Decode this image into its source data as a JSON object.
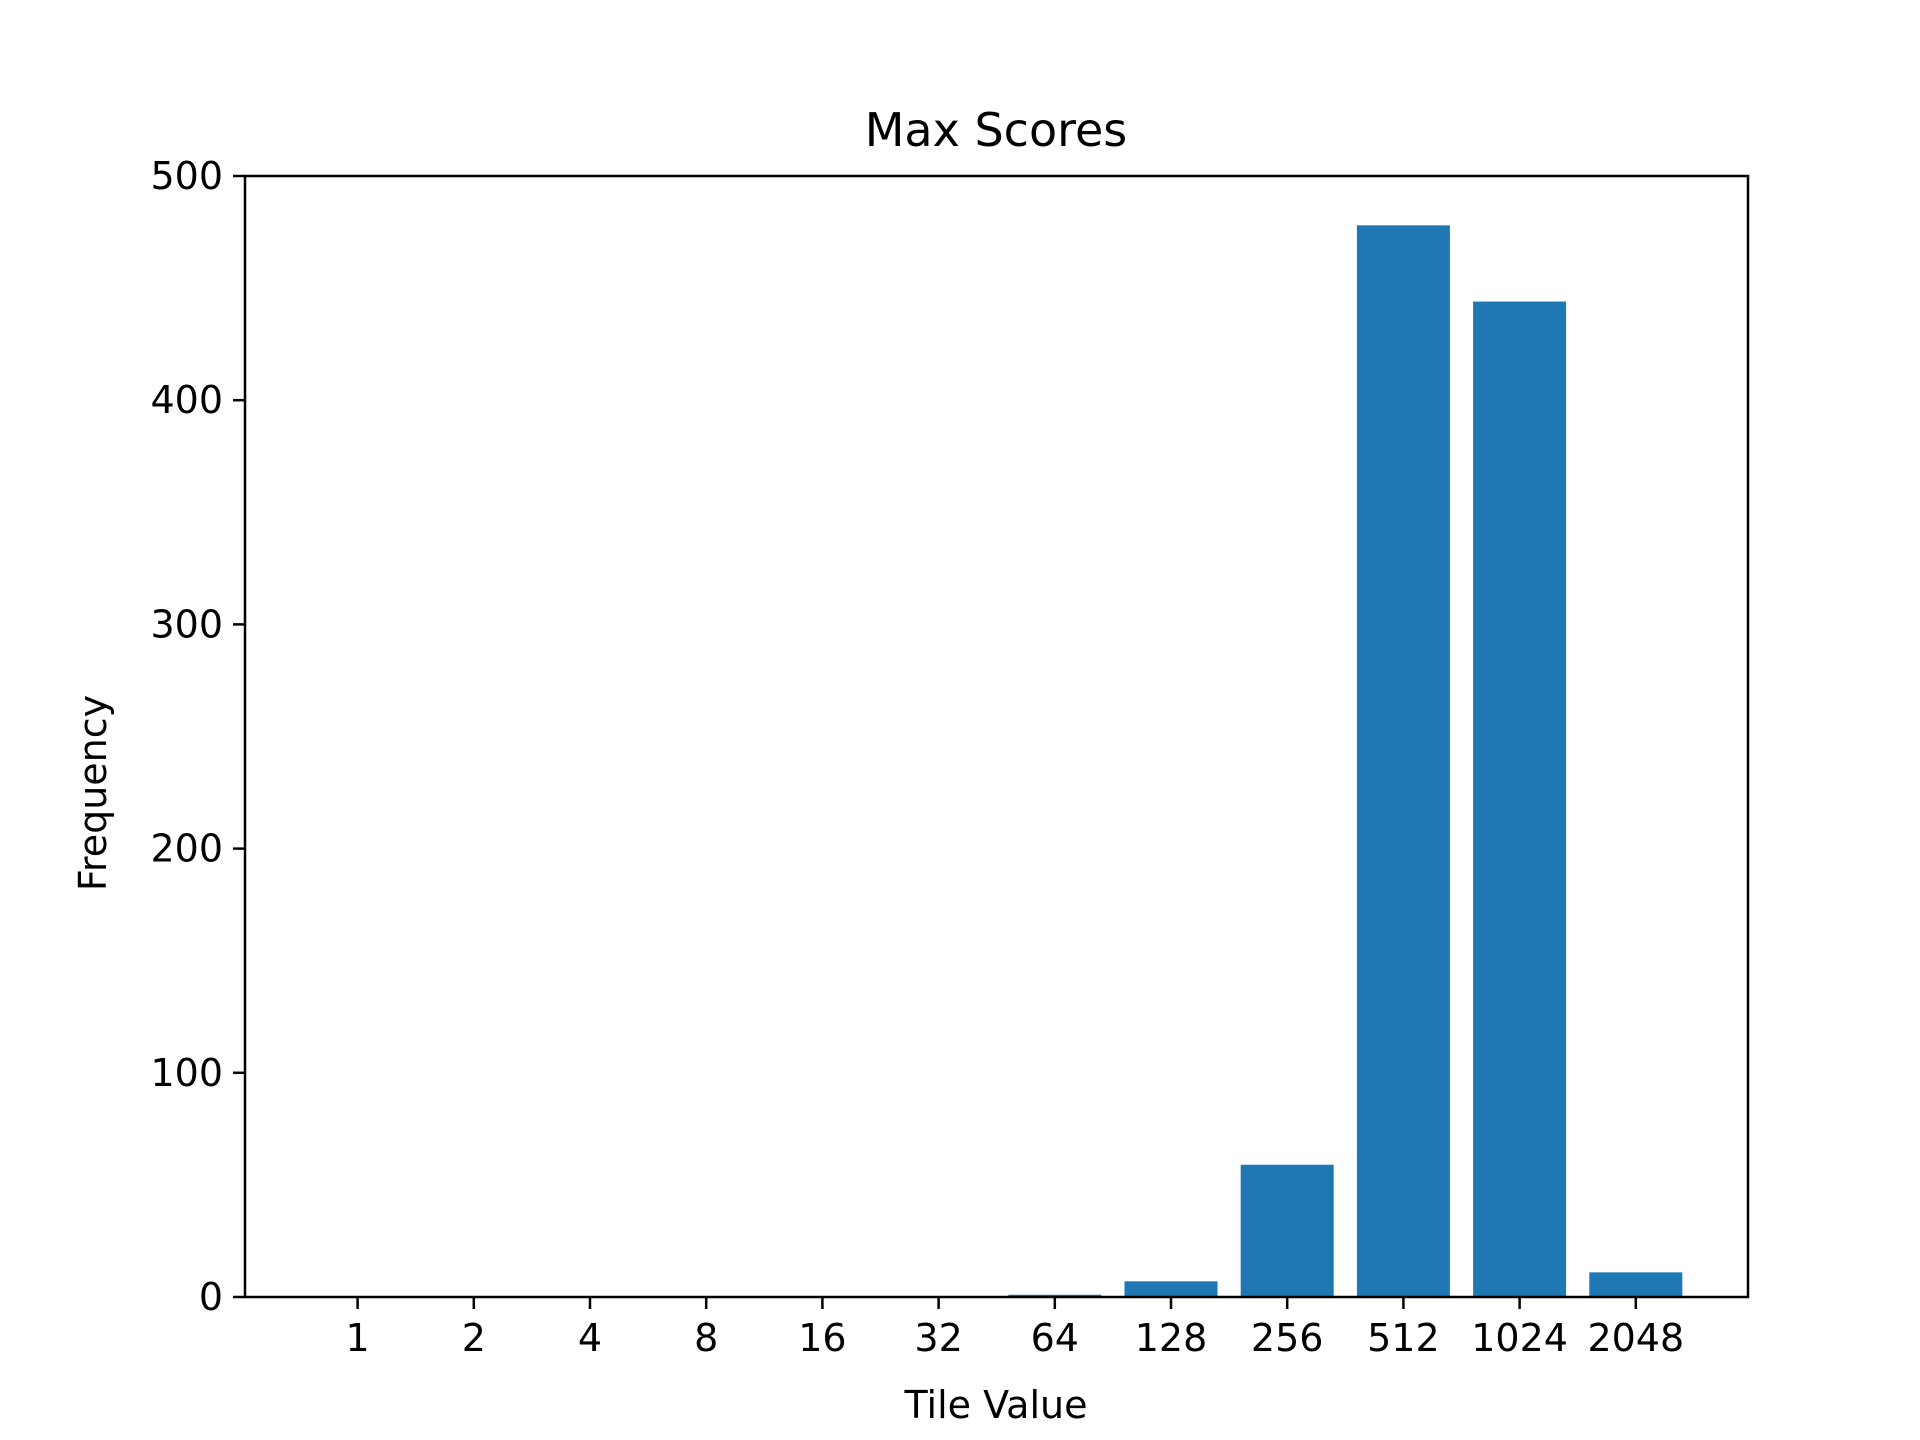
{
  "chart_data": {
    "type": "bar",
    "title": "Max Scores",
    "xlabel": "Tile Value",
    "ylabel": "Frequency",
    "categories": [
      "1",
      "2",
      "4",
      "8",
      "16",
      "32",
      "64",
      "128",
      "256",
      "512",
      "1024",
      "2048"
    ],
    "values": [
      0,
      0,
      0,
      0,
      0,
      0,
      1,
      7,
      59,
      478,
      444,
      11
    ],
    "ylim": [
      0,
      500
    ],
    "yticks": [
      0,
      100,
      200,
      300,
      400,
      500
    ],
    "grid": false,
    "legend": "none",
    "colors": {
      "bar": "#1f77b4",
      "axes": "#000000",
      "background": "#ffffff"
    }
  }
}
